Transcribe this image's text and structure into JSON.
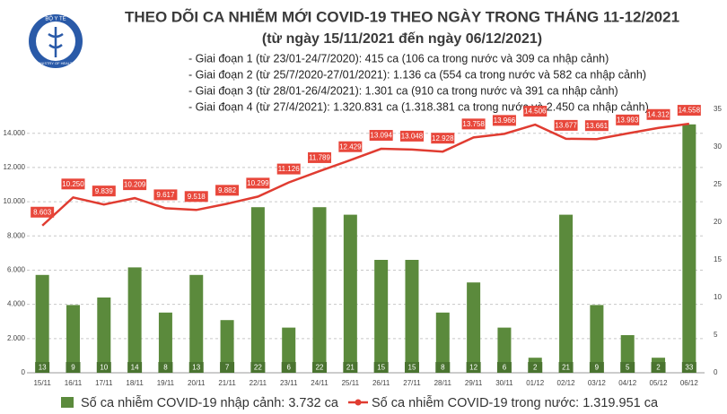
{
  "logo": {
    "top": "BỘ Y TẾ",
    "bottom": "MINISTRY OF HEALTH"
  },
  "chart_data": {
    "type": "combo",
    "title": "THEO DÕI CA NHIỄM MỚI COVID-19 THEO NGÀY TRONG THÁNG 11-12/2021",
    "subtitle": "(từ ngày 15/11/2021 đến ngày 06/12/2021)",
    "annotations": [
      "- Giai đoạn 1 (từ 23/01-24/7/2020): 415 ca (106 ca trong nước và 309 ca nhập cảnh)",
      "- Giai đoạn 2 (từ 25/7/2020-27/01/2021): 1.136 ca (554 ca trong nước và 582 ca nhập cảnh)",
      "- Giai đoạn 3 (từ 28/01-26/4/2021): 1.301 ca (910 ca trong nước và 391 ca nhập cảnh)",
      "- Giai đoạn 4 (từ 27/4/2021): 1.320.831 ca (1.318.381 ca trong nước và 2.450 ca nhập cảnh)"
    ],
    "categories": [
      "15/11",
      "16/11",
      "17/11",
      "18/11",
      "19/11",
      "20/11",
      "21/11",
      "22/11",
      "23/11",
      "24/11",
      "25/11",
      "26/11",
      "27/11",
      "28/11",
      "29/11",
      "30/11",
      "01/12",
      "02/12",
      "03/12",
      "04/12",
      "05/12",
      "06/12"
    ],
    "series": [
      {
        "name": "Số ca nhiễm COVID-19 nhập cảnh: 3.732 ca",
        "type": "bar",
        "axis": "y2",
        "color": "#5b8a3c",
        "values": [
          13,
          9,
          10,
          14,
          8,
          13,
          7,
          22,
          6,
          22,
          21,
          15,
          15,
          8,
          12,
          6,
          2,
          21,
          9,
          5,
          2,
          33
        ]
      },
      {
        "name": "Số ca nhiễm COVID-19 trong nước: 1.319.951 ca",
        "type": "line",
        "color": "#e03c31",
        "values": [
          8603,
          10250,
          9839,
          10209,
          9617,
          9518,
          9882,
          10299,
          11126,
          11789,
          12429,
          13094,
          13048,
          12928,
          13758,
          13966,
          14506,
          13677,
          13661,
          13993,
          14312,
          14558
        ],
        "value_labels": [
          "8.603",
          "10.250",
          "9.839",
          "10.209",
          "9.617",
          "9.518",
          "9.882",
          "10.299",
          "11.126",
          "11.789",
          "12.429",
          "13.094",
          "13.048",
          "12.928",
          "13.758",
          "13.966",
          "14.506",
          "13.677",
          "13.661",
          "13.993",
          "14.312",
          "14.558"
        ]
      }
    ],
    "ylim": [
      0,
      15400
    ],
    "yticks": [
      0,
      {
        "value": 2000,
        "label": "2.000"
      },
      {
        "value": 4000,
        "label": "4.000"
      },
      {
        "value": 6000,
        "label": "6.000"
      },
      {
        "value": 8000,
        "label": "8.000"
      },
      {
        "value": 10000,
        "label": "10.000"
      },
      {
        "value": 12000,
        "label": "12.000"
      },
      {
        "value": 14000,
        "label": "14.000"
      }
    ],
    "y2lim": [
      0,
      35
    ],
    "y2ticks": [
      0,
      5,
      10,
      15,
      20,
      25,
      30,
      35
    ],
    "grid": true
  }
}
